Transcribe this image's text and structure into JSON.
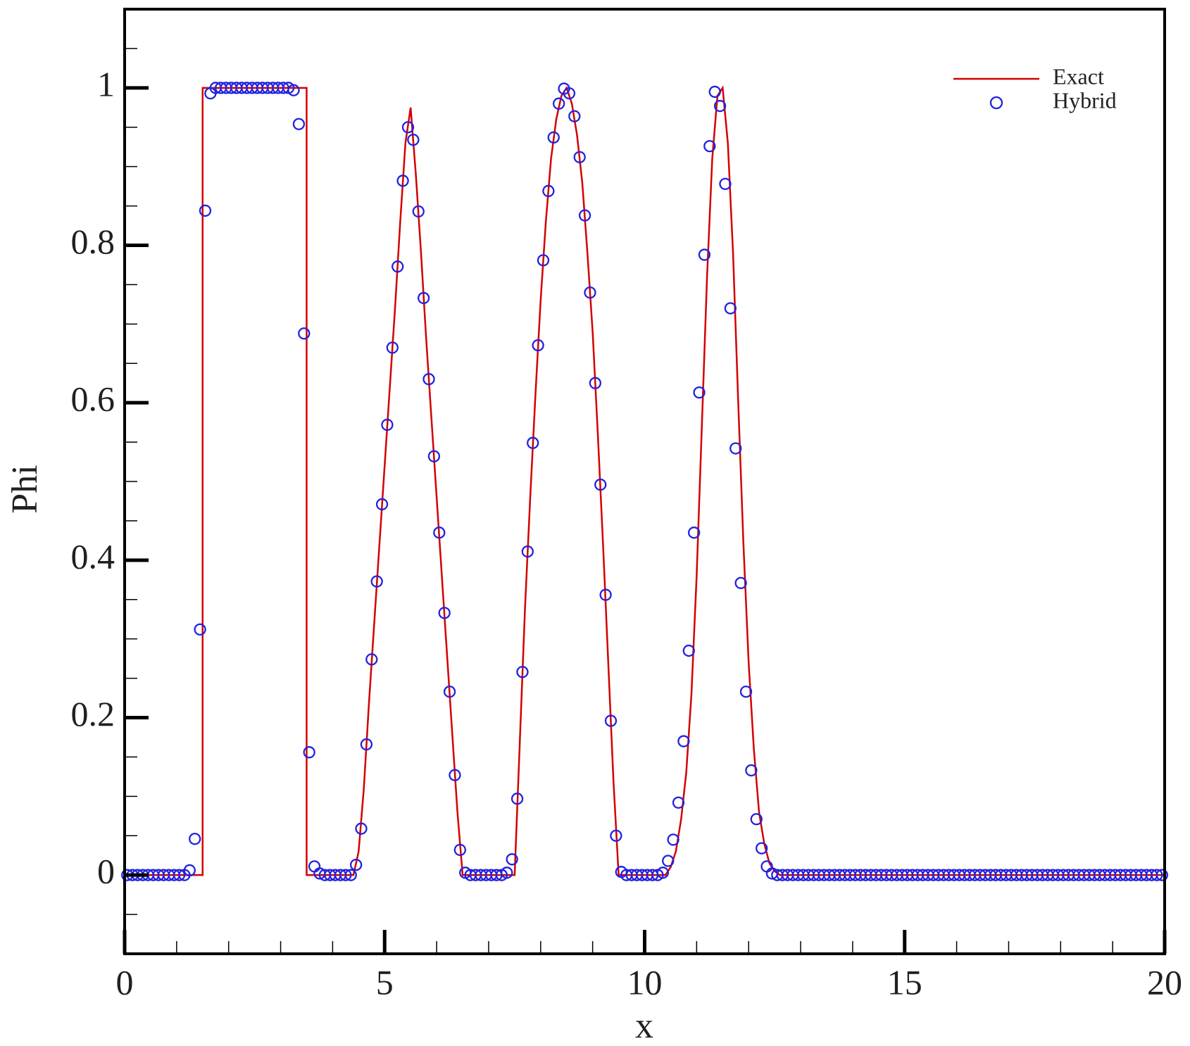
{
  "chart_data": {
    "type": "line_scatter",
    "xlabel": "x",
    "ylabel": "Phi",
    "xlim": [
      0,
      20
    ],
    "ylim": [
      -0.1,
      1.1
    ],
    "xticks": [
      0,
      5,
      10,
      15,
      20
    ],
    "yticks": [
      0,
      0.2,
      0.4,
      0.6,
      0.8,
      1
    ],
    "xminorticks": [
      1,
      2,
      3,
      4,
      6,
      7,
      8,
      9,
      11,
      12,
      13,
      14,
      16,
      17,
      18,
      19
    ],
    "yminorticks": [
      -0.05,
      0.05,
      0.1,
      0.15,
      0.25,
      0.3,
      0.35,
      0.45,
      0.5,
      0.55,
      0.65,
      0.7,
      0.75,
      0.85,
      0.9,
      0.95,
      1.05
    ],
    "legend": "upper right",
    "series": [
      {
        "name": "Exact",
        "kind": "line",
        "color": "#d40000",
        "x": [
          0,
          1.5,
          1.5,
          3.5,
          3.5,
          4.4,
          4.5,
          4.6,
          4.7,
          4.8,
          4.9,
          5.0,
          5.1,
          5.2,
          5.3,
          5.4,
          5.5,
          5.6,
          5.7,
          5.8,
          5.9,
          6.0,
          6.1,
          6.2,
          6.3,
          6.4,
          6.5,
          7.5,
          7.6,
          7.7,
          7.8,
          7.9,
          8.0,
          8.1,
          8.2,
          8.3,
          8.4,
          8.5,
          8.6,
          8.7,
          8.8,
          8.9,
          9.0,
          9.1,
          9.2,
          9.3,
          9.4,
          9.5,
          10.4,
          10.5,
          10.6,
          10.7,
          10.8,
          10.9,
          11.0,
          11.1,
          11.2,
          11.3,
          11.4,
          11.5,
          11.6,
          11.7,
          11.8,
          11.9,
          12.0,
          12.1,
          12.2,
          12.3,
          12.4,
          12.5,
          12.6,
          20
        ],
        "values": [
          0,
          0,
          1,
          1,
          0,
          0,
          0.03,
          0.11,
          0.22,
          0.32,
          0.42,
          0.52,
          0.62,
          0.72,
          0.83,
          0.93,
          0.975,
          0.89,
          0.79,
          0.68,
          0.58,
          0.48,
          0.38,
          0.28,
          0.18,
          0.08,
          0,
          0,
          0.17,
          0.34,
          0.48,
          0.61,
          0.73,
          0.83,
          0.91,
          0.96,
          0.99,
          1.0,
          0.98,
          0.94,
          0.88,
          0.79,
          0.69,
          0.56,
          0.42,
          0.27,
          0.12,
          0,
          0,
          0.01,
          0.03,
          0.07,
          0.13,
          0.23,
          0.38,
          0.57,
          0.76,
          0.91,
          0.99,
          1.0,
          0.93,
          0.79,
          0.6,
          0.42,
          0.27,
          0.16,
          0.08,
          0.04,
          0.015,
          0.005,
          0,
          0
        ]
      },
      {
        "name": "Hybrid",
        "kind": "scatter",
        "color": "#2222dd",
        "x": [
          0.05,
          0.15,
          0.25,
          0.35,
          0.45,
          0.55,
          0.65,
          0.75,
          0.85,
          0.95,
          1.05,
          1.15,
          1.25,
          1.35,
          1.45,
          1.55,
          1.65,
          1.75,
          1.85,
          1.95,
          2.05,
          2.15,
          2.25,
          2.35,
          2.45,
          2.55,
          2.65,
          2.75,
          2.85,
          2.95,
          3.05,
          3.15,
          3.25,
          3.35,
          3.45,
          3.55,
          3.65,
          3.75,
          3.85,
          3.95,
          4.05,
          4.15,
          4.25,
          4.35,
          4.45,
          4.55,
          4.65,
          4.75,
          4.85,
          4.95,
          5.05,
          5.15,
          5.25,
          5.35,
          5.45,
          5.55,
          5.65,
          5.75,
          5.85,
          5.95,
          6.05,
          6.15,
          6.25,
          6.35,
          6.45,
          6.55,
          6.65,
          6.75,
          6.85,
          6.95,
          7.05,
          7.15,
          7.25,
          7.35,
          7.45,
          7.55,
          7.65,
          7.75,
          7.85,
          7.95,
          8.05,
          8.15,
          8.25,
          8.35,
          8.45,
          8.55,
          8.65,
          8.75,
          8.85,
          8.95,
          9.05,
          9.15,
          9.25,
          9.35,
          9.45,
          9.55,
          9.65,
          9.75,
          9.85,
          9.95,
          10.05,
          10.15,
          10.25,
          10.35,
          10.45,
          10.55,
          10.65,
          10.75,
          10.85,
          10.95,
          11.05,
          11.15,
          11.25,
          11.35,
          11.45,
          11.55,
          11.65,
          11.75,
          11.85,
          11.95,
          12.05,
          12.15,
          12.25,
          12.35,
          12.45,
          12.55,
          12.65,
          12.75,
          12.85,
          12.95,
          13.05,
          13.15,
          13.25,
          13.35,
          13.45,
          13.55,
          13.65,
          13.75,
          13.85,
          13.95,
          14.05,
          14.15,
          14.25,
          14.35,
          14.45,
          14.55,
          14.65,
          14.75,
          14.85,
          14.95,
          15.05,
          15.15,
          15.25,
          15.35,
          15.45,
          15.55,
          15.65,
          15.75,
          15.85,
          15.95,
          16.05,
          16.15,
          16.25,
          16.35,
          16.45,
          16.55,
          16.65,
          16.75,
          16.85,
          16.95,
          17.05,
          17.15,
          17.25,
          17.35,
          17.45,
          17.55,
          17.65,
          17.75,
          17.85,
          17.95,
          18.05,
          18.15,
          18.25,
          18.35,
          18.45,
          18.55,
          18.65,
          18.75,
          18.85,
          18.95,
          19.05,
          19.15,
          19.25,
          19.35,
          19.45,
          19.55,
          19.65,
          19.75,
          19.85,
          19.95
        ],
        "values": [
          0,
          0,
          0,
          0,
          0,
          0,
          0,
          0,
          0,
          0,
          0,
          0,
          0.006,
          0.046,
          0.312,
          0.844,
          0.993,
          1,
          1,
          1,
          1,
          1,
          1,
          1,
          1,
          1,
          1,
          1,
          1,
          1,
          1,
          1,
          0.997,
          0.954,
          0.688,
          0.156,
          0.011,
          0.002,
          0,
          0,
          0,
          0,
          0,
          0,
          0.013,
          0.059,
          0.166,
          0.274,
          0.373,
          0.471,
          0.572,
          0.67,
          0.773,
          0.882,
          0.95,
          0.934,
          0.843,
          0.733,
          0.63,
          0.532,
          0.435,
          0.333,
          0.233,
          0.127,
          0.032,
          0.003,
          0,
          0,
          0,
          0,
          0,
          0,
          0,
          0.003,
          0.02,
          0.097,
          0.258,
          0.411,
          0.549,
          0.673,
          0.781,
          0.869,
          0.937,
          0.98,
          0.999,
          0.993,
          0.964,
          0.912,
          0.838,
          0.74,
          0.625,
          0.496,
          0.356,
          0.196,
          0.05,
          0.004,
          0,
          0,
          0,
          0,
          0,
          0,
          0,
          0.003,
          0.018,
          0.045,
          0.092,
          0.17,
          0.285,
          0.435,
          0.613,
          0.788,
          0.926,
          0.995,
          0.977,
          0.878,
          0.72,
          0.542,
          0.371,
          0.233,
          0.133,
          0.071,
          0.034,
          0.011,
          0.002,
          0,
          0,
          0,
          0,
          0,
          0,
          0,
          0,
          0,
          0,
          0,
          0,
          0,
          0,
          0,
          0,
          0,
          0,
          0,
          0,
          0,
          0,
          0,
          0,
          0,
          0,
          0,
          0,
          0,
          0,
          0,
          0,
          0,
          0,
          0,
          0,
          0,
          0,
          0,
          0,
          0,
          0,
          0,
          0,
          0,
          0,
          0,
          0,
          0,
          0,
          0,
          0,
          0,
          0,
          0,
          0,
          0,
          0,
          0,
          0,
          0,
          0,
          0,
          0,
          0,
          0,
          0,
          0,
          0,
          0,
          0,
          0,
          0,
          0,
          0
        ]
      }
    ]
  }
}
